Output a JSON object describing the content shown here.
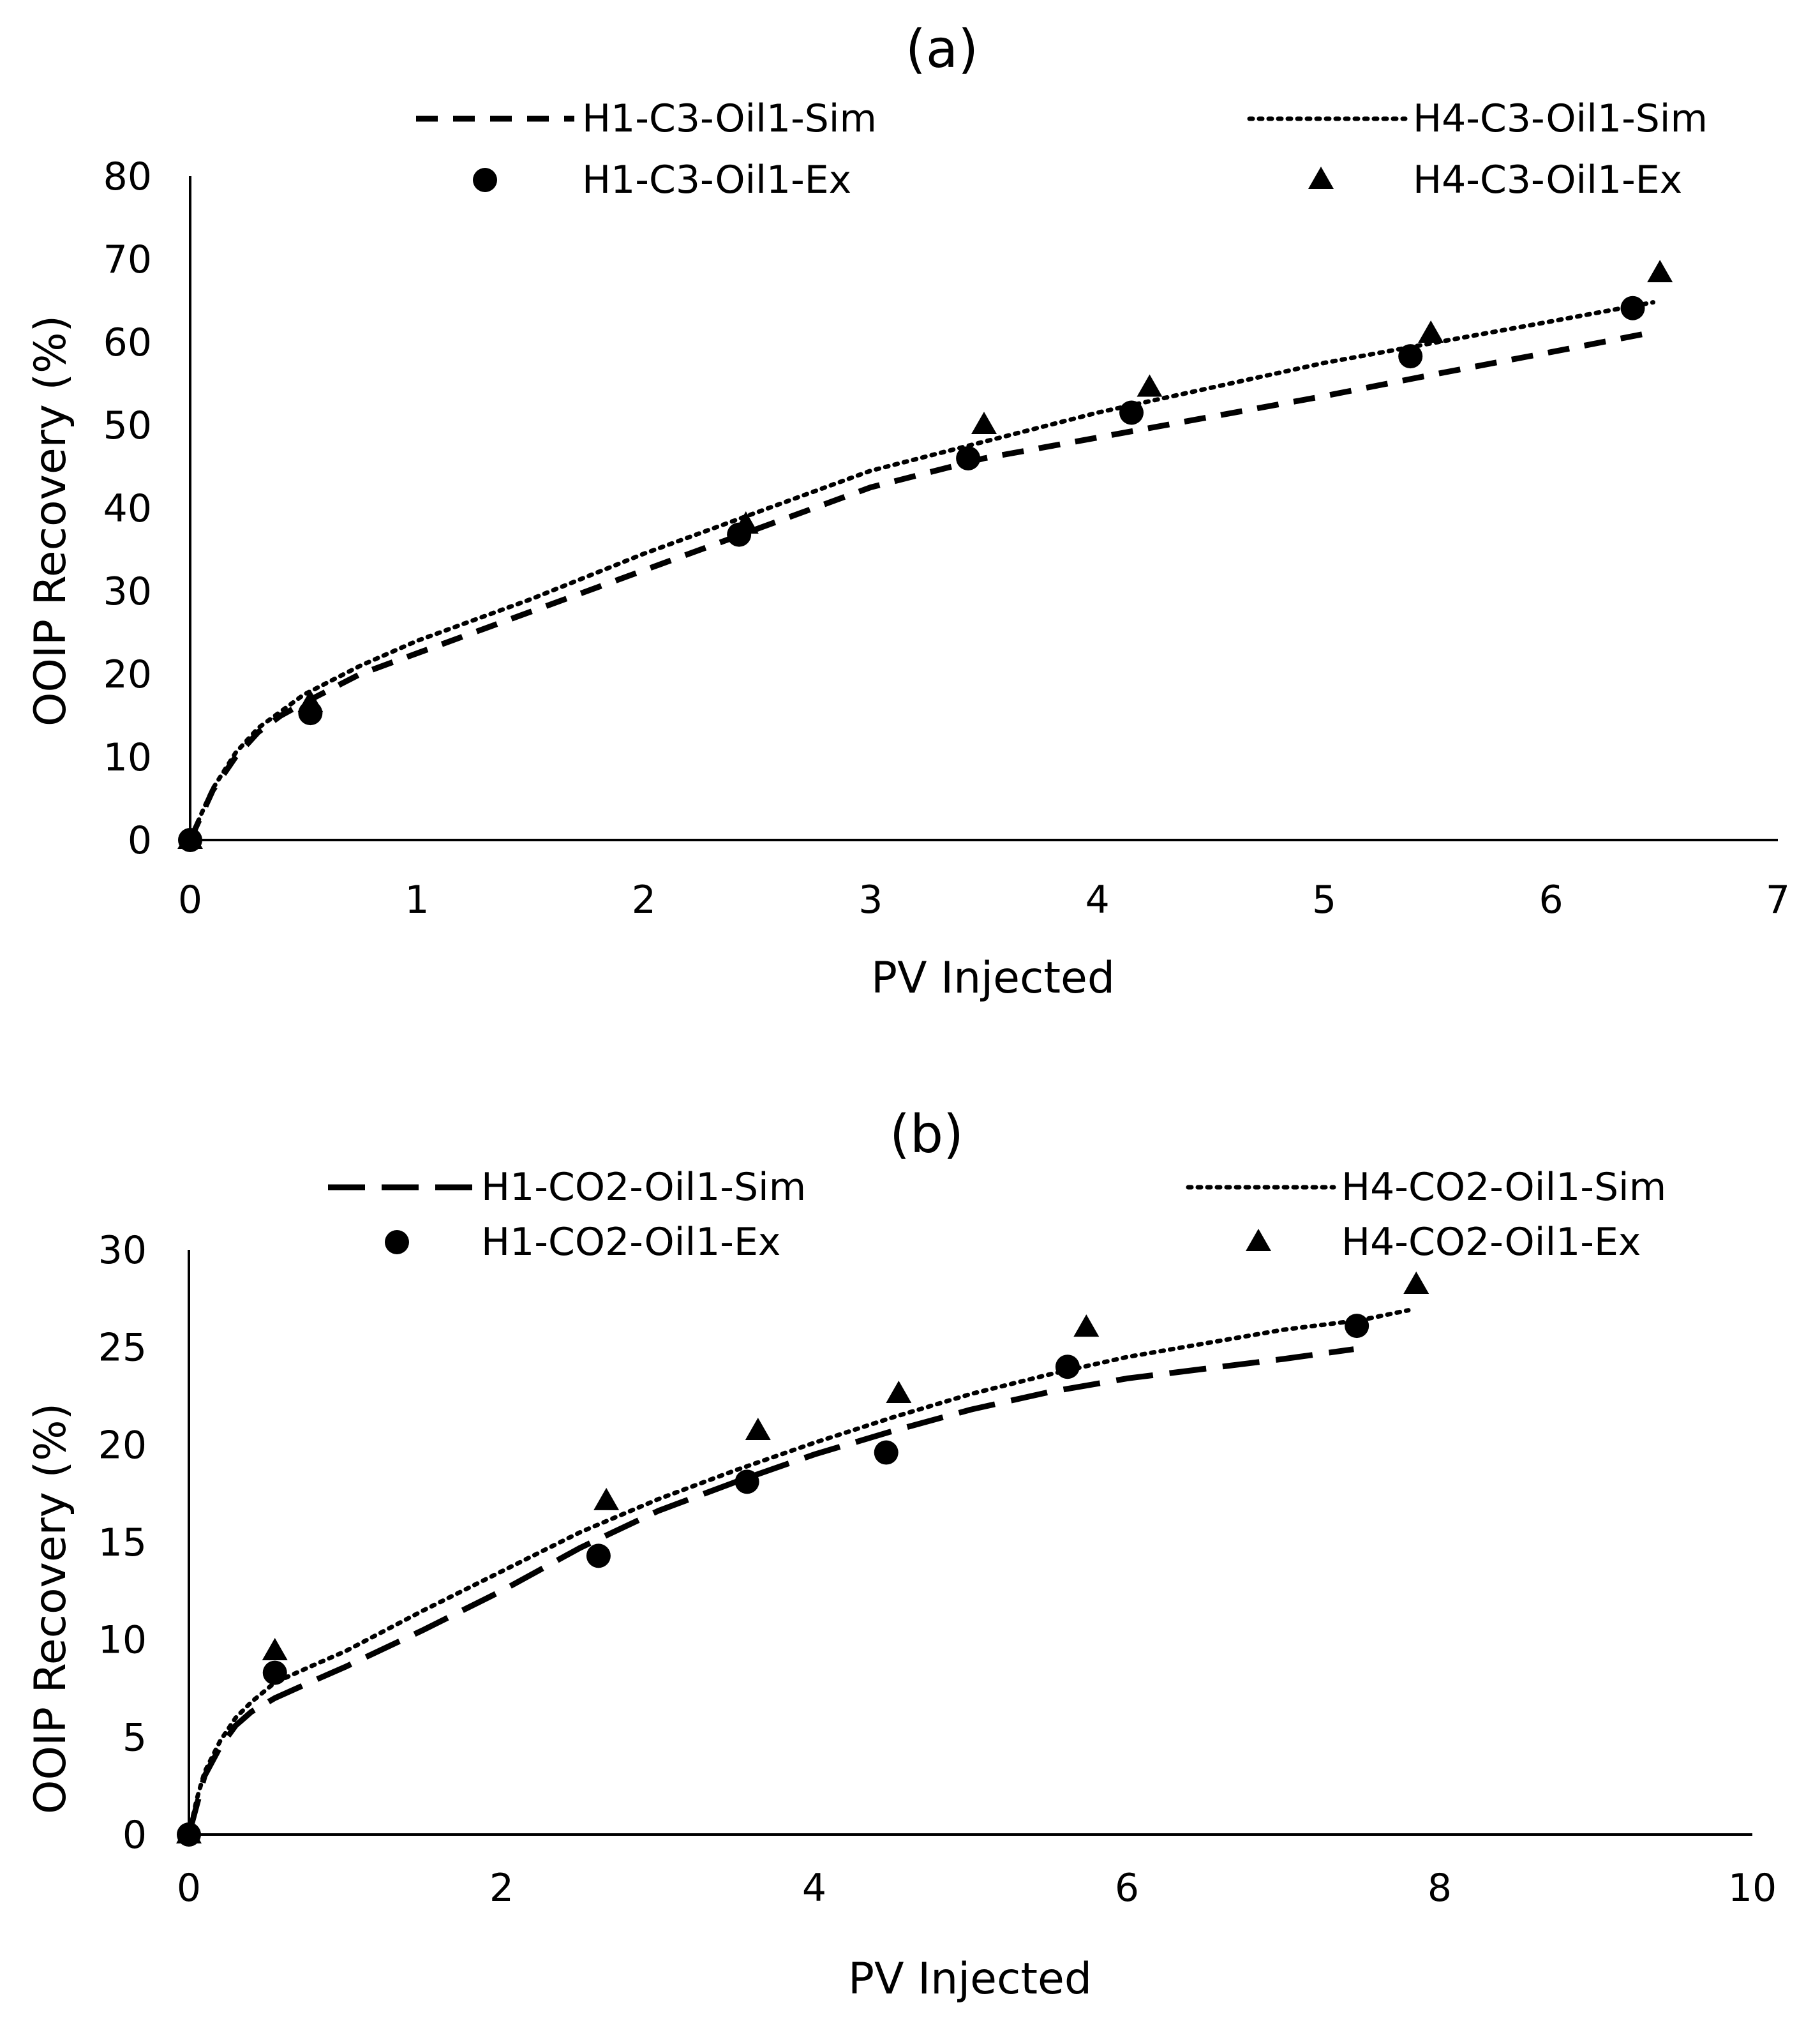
{
  "chart_data": [
    {
      "type": "line",
      "panel_label": "(a)",
      "xlabel": "PV Injected",
      "ylabel": "OOIP Recovery (%)",
      "xlim": [
        0,
        7
      ],
      "ylim": [
        0,
        80
      ],
      "x_ticks": [
        0,
        1,
        2,
        3,
        4,
        5,
        6,
        7
      ],
      "y_ticks": [
        0,
        10,
        20,
        30,
        40,
        50,
        60,
        70,
        80
      ],
      "grid": false,
      "legend_position": "top",
      "series": [
        {
          "name": "H1-C3-Oil1-Sim",
          "kind": "line",
          "style": "dashed",
          "x": [
            0,
            0.05,
            0.1,
            0.2,
            0.3,
            0.4,
            0.5,
            0.75,
            1.0,
            1.5,
            2.0,
            2.5,
            3.0,
            3.5,
            4.0,
            4.5,
            5.0,
            5.5,
            6.0,
            6.45
          ],
          "y": [
            0,
            3,
            6,
            10,
            13,
            15,
            16.5,
            20,
            22.5,
            27.5,
            32.5,
            37.5,
            42.5,
            46,
            48.5,
            51,
            53.5,
            56.2,
            58.8,
            61.2
          ]
        },
        {
          "name": "H4-C3-Oil1-Sim",
          "kind": "line",
          "style": "dotted",
          "x": [
            0,
            0.05,
            0.1,
            0.2,
            0.3,
            0.4,
            0.5,
            0.75,
            1.0,
            1.5,
            2.0,
            2.5,
            3.0,
            3.5,
            4.0,
            4.5,
            5.0,
            5.5,
            6.0,
            6.45
          ],
          "y": [
            0,
            3.2,
            6.2,
            10.5,
            13.5,
            15.5,
            17.5,
            21,
            24,
            29,
            34.5,
            39.5,
            44.5,
            48,
            51.5,
            54.5,
            57.5,
            60,
            62.5,
            64.8
          ]
        },
        {
          "name": "H1-C3-Oil1-Ex",
          "kind": "scatter",
          "marker": "circle",
          "x": [
            0,
            0.53,
            2.42,
            3.43,
            4.15,
            5.38,
            6.36
          ],
          "y": [
            0,
            15.3,
            36.8,
            46,
            51.5,
            58.3,
            64.1
          ]
        },
        {
          "name": "H4-C3-Oil1-Ex",
          "kind": "scatter",
          "marker": "triangle",
          "x": [
            0,
            0.53,
            2.45,
            3.5,
            4.23,
            5.47,
            6.48
          ],
          "y": [
            0,
            16.5,
            38,
            50,
            54.5,
            61,
            68.3
          ]
        }
      ]
    },
    {
      "type": "line",
      "panel_label": "(b)",
      "xlabel": "PV Injected",
      "ylabel": "OOIP Recovery (%)",
      "xlim": [
        0,
        10
      ],
      "ylim": [
        0,
        30
      ],
      "x_ticks": [
        0,
        2,
        4,
        6,
        8,
        10
      ],
      "y_ticks": [
        0,
        5,
        10,
        15,
        20,
        25,
        30
      ],
      "grid": false,
      "legend_position": "top",
      "series": [
        {
          "name": "H1-CO2-Oil1-Sim",
          "kind": "line",
          "style": "long-dashed",
          "x": [
            0,
            0.05,
            0.1,
            0.2,
            0.3,
            0.4,
            0.55,
            0.8,
            1.0,
            1.5,
            2.0,
            2.5,
            3.0,
            3.5,
            4.0,
            4.5,
            5.0,
            5.5,
            6.0,
            6.5,
            7.0,
            7.45
          ],
          "y": [
            0,
            1.5,
            3,
            4.5,
            5.6,
            6.3,
            7.0,
            7.9,
            8.6,
            10.5,
            12.5,
            14.7,
            16.6,
            18.1,
            19.5,
            20.7,
            21.8,
            22.7,
            23.4,
            23.9,
            24.4,
            24.9
          ]
        },
        {
          "name": "H4-CO2-Oil1-Sim",
          "kind": "line",
          "style": "dotted",
          "x": [
            0,
            0.05,
            0.1,
            0.2,
            0.3,
            0.4,
            0.55,
            0.8,
            1.0,
            1.5,
            2.0,
            2.5,
            3.0,
            3.5,
            4.0,
            4.5,
            5.0,
            5.5,
            6.0,
            6.5,
            7.0,
            7.5,
            7.8
          ],
          "y": [
            0,
            1.8,
            3.2,
            4.8,
            6,
            6.8,
            7.8,
            8.7,
            9.4,
            11.5,
            13.5,
            15.5,
            17.2,
            18.7,
            20.1,
            21.4,
            22.6,
            23.6,
            24.5,
            25.2,
            25.9,
            26.4,
            26.9
          ]
        },
        {
          "name": "H1-CO2-Oil1-Ex",
          "kind": "scatter",
          "marker": "circle",
          "x": [
            0,
            0.55,
            2.62,
            3.57,
            4.46,
            5.62,
            7.47
          ],
          "y": [
            0,
            8.3,
            14.3,
            18.1,
            19.6,
            24,
            26.1
          ]
        },
        {
          "name": "H4-CO2-Oil1-Ex",
          "kind": "scatter",
          "marker": "triangle",
          "x": [
            0,
            0.55,
            2.67,
            3.64,
            4.54,
            5.74,
            7.85
          ],
          "y": [
            0,
            9.4,
            17.1,
            20.7,
            22.6,
            26,
            28.2
          ]
        }
      ]
    }
  ]
}
